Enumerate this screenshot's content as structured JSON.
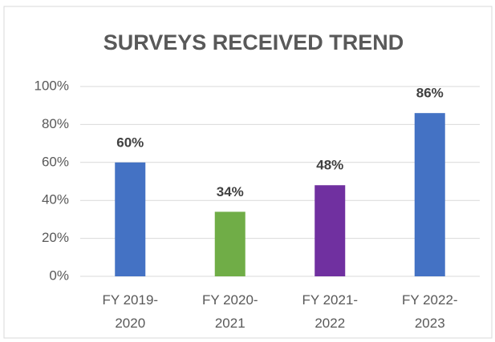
{
  "chart_data": {
    "type": "bar",
    "title": "SURVEYS RECEIVED TREND",
    "categories": [
      "FY 2019-2020",
      "FY 2020-2021",
      "FY 2021-2022",
      "FY 2022-2023"
    ],
    "values": [
      60,
      34,
      48,
      86
    ],
    "value_labels": [
      "60%",
      "34%",
      "48%",
      "86%"
    ],
    "colors": [
      "#4472c4",
      "#70ad47",
      "#7030a0",
      "#4472c4"
    ],
    "ylim": [
      0,
      100
    ],
    "yticks": [
      {
        "value": 0,
        "label": "0%"
      },
      {
        "value": 20,
        "label": "20%"
      },
      {
        "value": 40,
        "label": "40%"
      },
      {
        "value": 60,
        "label": "60%"
      },
      {
        "value": 80,
        "label": "80%"
      },
      {
        "value": 100,
        "label": "100%"
      }
    ],
    "grid": true
  }
}
